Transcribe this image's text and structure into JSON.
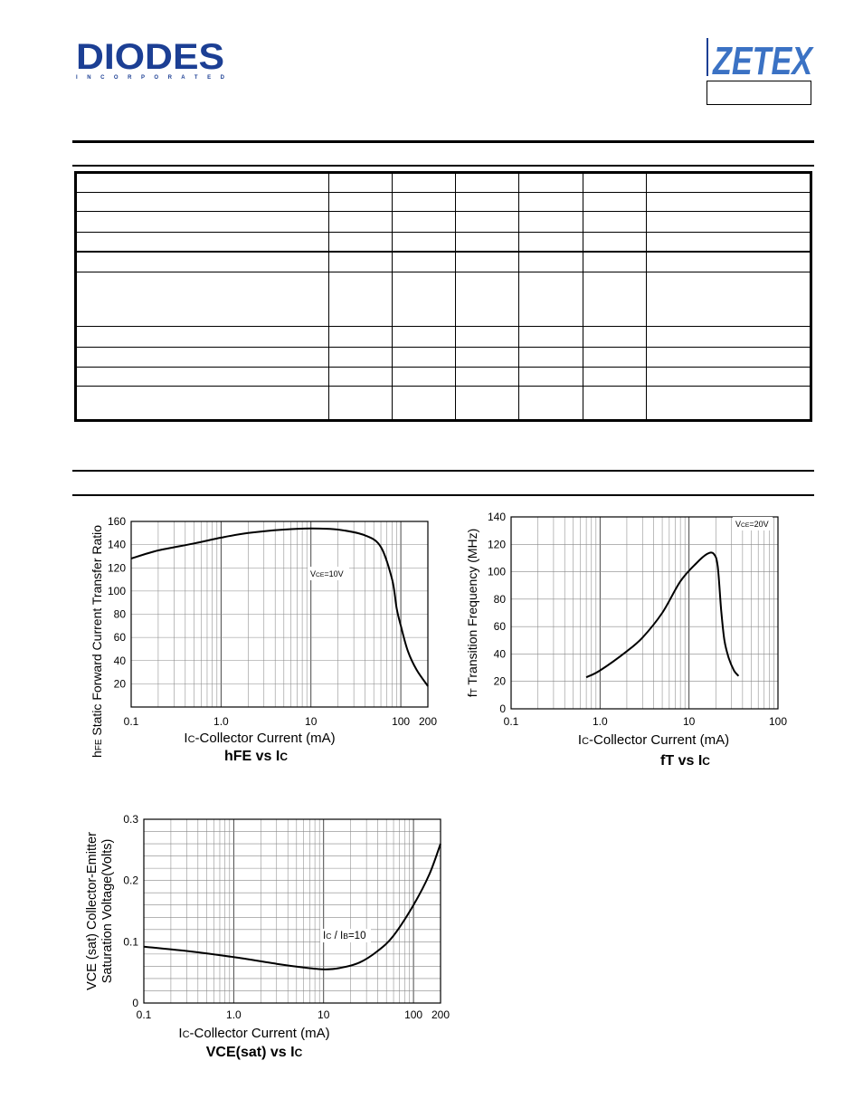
{
  "header": {
    "brand_logo": "DIODES",
    "brand_sub": "I N C O R P O R A T E D",
    "partner_logo": "ZETEX"
  },
  "table": {
    "row_count": 13,
    "column_count": 7
  },
  "chart_data": [
    {
      "type": "line",
      "xscale": "log",
      "title_main": "hFE",
      "title_mid": " vs I",
      "title_sub": "C",
      "xlabel_pre": "I",
      "xlabel_sub": "C",
      "xlabel_post": "-Collector Current  (mA)",
      "ylabel_pre": "h",
      "ylabel_sub": "FE",
      "ylabel_post": " Static Forward Current Transfer Ratio",
      "annotation_pre": "V",
      "annotation_sub": "CE",
      "annotation_post": "=10V",
      "xlim": [
        0.1,
        200
      ],
      "ylim": [
        0,
        160
      ],
      "xticks": [
        "0.1",
        "1.0",
        "10",
        "100",
        "200"
      ],
      "yticks": [
        "20",
        "40",
        "60",
        "80",
        "100",
        "120",
        "140",
        "160"
      ],
      "grid": true,
      "series": [
        {
          "x": [
            0.1,
            0.2,
            0.5,
            1,
            2,
            5,
            10,
            20,
            40,
            60,
            80,
            90,
            100,
            120,
            150,
            200
          ],
          "y": [
            128,
            135,
            141,
            146,
            150,
            153,
            154,
            153,
            148,
            138,
            110,
            85,
            70,
            48,
            32,
            18
          ]
        }
      ]
    },
    {
      "type": "line",
      "xscale": "log",
      "title_main": "fT",
      "title_mid": " vs I",
      "title_sub": "C",
      "xlabel_pre": "I",
      "xlabel_sub": "C",
      "xlabel_post": "-Collector Current  (mA)",
      "ylabel_pre": "f",
      "ylabel_sub": "T",
      "ylabel_post": " Transition Frequency (MHz)",
      "annotation_pre": "V",
      "annotation_sub": "CE",
      "annotation_post": "=20V",
      "xlim": [
        0.1,
        100
      ],
      "ylim": [
        0,
        140
      ],
      "xticks": [
        "0.1",
        "1.0",
        "10",
        "100"
      ],
      "yticks": [
        "0",
        "20",
        "40",
        "60",
        "80",
        "100",
        "120",
        "140"
      ],
      "grid": true,
      "series": [
        {
          "x": [
            0.7,
            1,
            2,
            3,
            5,
            8,
            12,
            16,
            19,
            21,
            23,
            25,
            28,
            32,
            36
          ],
          "y": [
            23,
            28,
            42,
            52,
            70,
            93,
            106,
            113,
            113,
            104,
            72,
            50,
            37,
            28,
            24
          ]
        }
      ]
    },
    {
      "type": "line",
      "xscale": "log",
      "title_main": "VCE(sat)",
      "title_mid": " vs I",
      "title_sub": "C",
      "xlabel_pre": "I",
      "xlabel_sub": "C",
      "xlabel_post": "-Collector Current  (mA)",
      "ylabel_line1": "VCE (sat) Collector-Emitter",
      "ylabel_line2": "Saturation Voltage(Volts)",
      "annotation_pre": "I",
      "annotation_sub": "C",
      "annotation_mid": " / I",
      "annotation_sub2": "B",
      "annotation_post": "=10",
      "xlim": [
        0.1,
        200
      ],
      "ylim": [
        0,
        0.3
      ],
      "xticks": [
        "0.1",
        "1.0",
        "10",
        "100",
        "200"
      ],
      "yticks": [
        "0",
        "0.1",
        "0.2",
        "0.3"
      ],
      "grid": true,
      "series": [
        {
          "x": [
            0.1,
            0.3,
            1,
            3,
            6,
            10,
            15,
            25,
            40,
            60,
            100,
            150,
            200
          ],
          "y": [
            0.092,
            0.085,
            0.075,
            0.064,
            0.058,
            0.055,
            0.057,
            0.066,
            0.085,
            0.11,
            0.16,
            0.21,
            0.26
          ]
        }
      ]
    }
  ]
}
